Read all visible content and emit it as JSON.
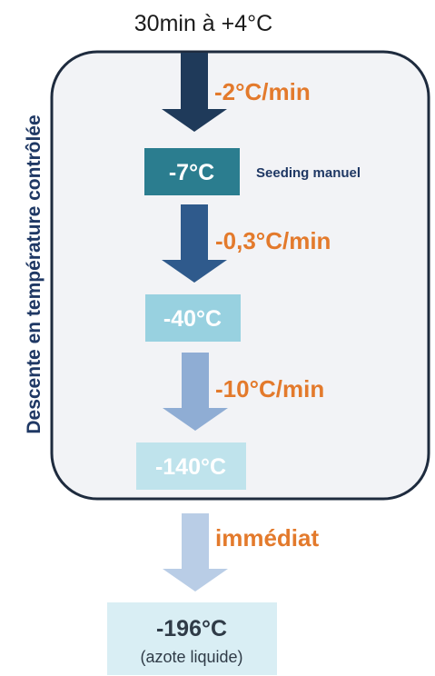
{
  "start_label": "30min à +4°C",
  "side_label": "Descente en température contrôlée",
  "steps": [
    {
      "rate": "-2°C/min",
      "temp": "-7°C"
    },
    {
      "rate": "-0,3°C/min",
      "temp": "-40°C"
    },
    {
      "rate": "-10°C/min",
      "temp": "-140°C"
    },
    {
      "rate": "immédiat",
      "temp": "-196°C"
    }
  ],
  "seeding_label": "Seeding manuel",
  "final_note": "(azote liquide)",
  "colors": {
    "rate_text": "#e37a2c",
    "side_text": "#1f3864",
    "seeding_text": "#1f3864",
    "panel_fill": "#f2f3f6",
    "panel_stroke": "#1e2b3e",
    "arrow_1": "#1f3a5a",
    "arrow_2": "#2f5a8c",
    "arrow_3": "#8fadd4",
    "arrow_4": "#b9cde6",
    "box_1": "#2b7d8f",
    "box_2": "#98d1e0",
    "box_3": "#bfe3ec",
    "box_4": "#d9eef4",
    "final_text": "#2f3b47"
  }
}
